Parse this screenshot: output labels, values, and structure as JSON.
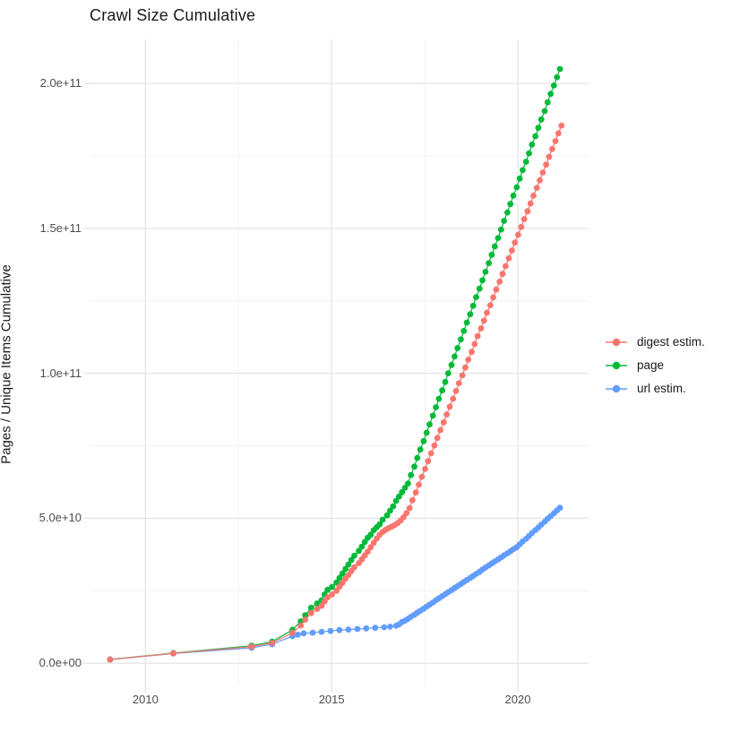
{
  "chart": {
    "title": "Crawl Size Cumulative",
    "ylabel": "Pages / Unique Items Cumulative",
    "xlabel": ""
  },
  "legend": {
    "position": "right",
    "items": [
      {
        "label": "digest estim.",
        "color": "#F8766D"
      },
      {
        "label": "page",
        "color": "#00BA38"
      },
      {
        "label": "url estim.",
        "color": "#619CFF"
      }
    ]
  },
  "chart_data": {
    "type": "line",
    "title": "Crawl Size Cumulative",
    "xlabel": "",
    "ylabel": "Pages / Unique Items Cumulative",
    "value_unit": "billions (1e9) of pages / unique items",
    "x_unit": "year",
    "grid": true,
    "legend_position": "right",
    "xlim": [
      2008.5,
      2021.9
    ],
    "ylim_billions": [
      -8,
      215.2
    ],
    "x_ticks": [
      {
        "label": "2010",
        "value": 2010
      },
      {
        "label": "2015",
        "value": 2015
      },
      {
        "label": "2020",
        "value": 2020
      }
    ],
    "y_ticks": [
      {
        "label": "0.0e+00",
        "value": 0
      },
      {
        "label": "5.0e+10",
        "value": 50
      },
      {
        "label": "1.0e+11",
        "value": 100
      },
      {
        "label": "1.5e+11",
        "value": 150
      },
      {
        "label": "2.0e+11",
        "value": 200
      }
    ],
    "x_minor": [
      2012.5,
      2017.5
    ],
    "y_minor_billions": [
      25,
      75,
      125,
      175
    ],
    "series": [
      {
        "name": "page",
        "color": "#00BA38",
        "points": [
          [
            2009.05,
            1.3
          ],
          [
            2010.75,
            3.5
          ],
          [
            2012.85,
            6.0
          ],
          [
            2013.4,
            7.4
          ],
          [
            2013.95,
            11.5
          ],
          [
            2014.17,
            14.4
          ],
          [
            2014.29,
            16.5
          ],
          [
            2014.45,
            19.1
          ],
          [
            2014.61,
            20.6
          ],
          [
            2014.73,
            21.7
          ],
          [
            2014.81,
            23.7
          ],
          [
            2014.89,
            25.3
          ],
          [
            2015.01,
            26.3
          ],
          [
            2015.13,
            27.8
          ],
          [
            2015.21,
            29.4
          ],
          [
            2015.29,
            30.9
          ],
          [
            2015.37,
            32.5
          ],
          [
            2015.45,
            34.0
          ],
          [
            2015.53,
            35.6
          ],
          [
            2015.61,
            37.1
          ],
          [
            2015.73,
            38.7
          ],
          [
            2015.81,
            40.2
          ],
          [
            2015.89,
            41.8
          ],
          [
            2015.97,
            43.3
          ],
          [
            2016.05,
            44.3
          ],
          [
            2016.13,
            45.9
          ],
          [
            2016.21,
            46.9
          ],
          [
            2016.29,
            47.9
          ],
          [
            2016.37,
            49.5
          ],
          [
            2016.49,
            51.0
          ],
          [
            2016.57,
            52.6
          ],
          [
            2016.65,
            54.1
          ],
          [
            2016.73,
            56.0
          ],
          [
            2016.81,
            57.5
          ],
          [
            2016.89,
            59.0
          ],
          [
            2016.97,
            60.5
          ],
          [
            2017.05,
            62.0
          ],
          [
            2017.13,
            64.9
          ],
          [
            2017.22,
            67.8
          ],
          [
            2017.3,
            70.8
          ],
          [
            2017.38,
            73.7
          ],
          [
            2017.47,
            76.6
          ],
          [
            2017.55,
            79.5
          ],
          [
            2017.63,
            82.4
          ],
          [
            2017.72,
            85.4
          ],
          [
            2017.8,
            88.3
          ],
          [
            2017.88,
            91.2
          ],
          [
            2017.97,
            94.1
          ],
          [
            2018.05,
            97.0
          ],
          [
            2018.13,
            100.0
          ],
          [
            2018.22,
            102.9
          ],
          [
            2018.3,
            105.8
          ],
          [
            2018.38,
            108.7
          ],
          [
            2018.47,
            111.7
          ],
          [
            2018.55,
            114.6
          ],
          [
            2018.63,
            117.5
          ],
          [
            2018.72,
            120.4
          ],
          [
            2018.8,
            123.3
          ],
          [
            2018.88,
            126.3
          ],
          [
            2018.97,
            129.2
          ],
          [
            2019.05,
            132.1
          ],
          [
            2019.13,
            135.0
          ],
          [
            2019.22,
            138.0
          ],
          [
            2019.3,
            140.9
          ],
          [
            2019.38,
            143.8
          ],
          [
            2019.47,
            146.7
          ],
          [
            2019.55,
            149.6
          ],
          [
            2019.63,
            152.6
          ],
          [
            2019.72,
            155.5
          ],
          [
            2019.8,
            158.4
          ],
          [
            2019.88,
            161.3
          ],
          [
            2019.97,
            164.2
          ],
          [
            2020.05,
            167.2
          ],
          [
            2020.13,
            170.1
          ],
          [
            2020.22,
            173.0
          ],
          [
            2020.3,
            175.9
          ],
          [
            2020.38,
            178.9
          ],
          [
            2020.47,
            181.8
          ],
          [
            2020.55,
            184.7
          ],
          [
            2020.63,
            187.6
          ],
          [
            2020.72,
            190.5
          ],
          [
            2020.8,
            193.5
          ],
          [
            2020.88,
            196.4
          ],
          [
            2020.97,
            199.3
          ],
          [
            2021.05,
            202.2
          ],
          [
            2021.13,
            205.0
          ]
        ]
      },
      {
        "name": "url estim.",
        "color": "#619CFF",
        "points": [
          [
            2009.05,
            1.2
          ],
          [
            2010.75,
            3.3
          ],
          [
            2012.85,
            5.3
          ],
          [
            2013.4,
            6.5
          ],
          [
            2013.95,
            9.3
          ],
          [
            2014.09,
            9.8
          ],
          [
            2014.25,
            10.3
          ],
          [
            2014.49,
            10.5
          ],
          [
            2014.73,
            10.8
          ],
          [
            2014.97,
            11.1
          ],
          [
            2015.21,
            11.4
          ],
          [
            2015.45,
            11.6
          ],
          [
            2015.69,
            11.8
          ],
          [
            2015.93,
            12.0
          ],
          [
            2016.17,
            12.2
          ],
          [
            2016.41,
            12.4
          ],
          [
            2016.57,
            12.6
          ],
          [
            2016.73,
            12.9
          ],
          [
            2016.81,
            13.4
          ],
          [
            2016.89,
            14.2
          ],
          [
            2016.97,
            14.7
          ],
          [
            2017.05,
            15.3
          ],
          [
            2017.13,
            16.0
          ],
          [
            2017.22,
            16.7
          ],
          [
            2017.3,
            17.4
          ],
          [
            2017.38,
            18.1
          ],
          [
            2017.47,
            18.8
          ],
          [
            2017.55,
            19.5
          ],
          [
            2017.63,
            20.2
          ],
          [
            2017.72,
            20.9
          ],
          [
            2017.8,
            21.7
          ],
          [
            2017.88,
            22.4
          ],
          [
            2017.97,
            23.1
          ],
          [
            2018.05,
            23.8
          ],
          [
            2018.13,
            24.5
          ],
          [
            2018.22,
            25.2
          ],
          [
            2018.3,
            25.9
          ],
          [
            2018.38,
            26.6
          ],
          [
            2018.47,
            27.3
          ],
          [
            2018.55,
            28.0
          ],
          [
            2018.63,
            28.7
          ],
          [
            2018.72,
            29.4
          ],
          [
            2018.8,
            30.1
          ],
          [
            2018.88,
            30.8
          ],
          [
            2018.97,
            31.5
          ],
          [
            2019.05,
            32.3
          ],
          [
            2019.13,
            33.0
          ],
          [
            2019.22,
            33.7
          ],
          [
            2019.3,
            34.4
          ],
          [
            2019.38,
            35.1
          ],
          [
            2019.47,
            35.8
          ],
          [
            2019.55,
            36.5
          ],
          [
            2019.63,
            37.2
          ],
          [
            2019.72,
            37.9
          ],
          [
            2019.8,
            38.6
          ],
          [
            2019.88,
            39.3
          ],
          [
            2019.97,
            40.0
          ],
          [
            2020.05,
            41.0
          ],
          [
            2020.13,
            42.0
          ],
          [
            2020.22,
            42.9
          ],
          [
            2020.3,
            43.9
          ],
          [
            2020.38,
            44.9
          ],
          [
            2020.47,
            45.9
          ],
          [
            2020.55,
            46.8
          ],
          [
            2020.63,
            47.8
          ],
          [
            2020.72,
            48.8
          ],
          [
            2020.8,
            49.8
          ],
          [
            2020.88,
            50.7
          ],
          [
            2020.97,
            51.7
          ],
          [
            2021.05,
            52.7
          ],
          [
            2021.13,
            53.6
          ]
        ]
      },
      {
        "name": "digest estim.",
        "color": "#F8766D",
        "points": [
          [
            2009.05,
            1.2
          ],
          [
            2010.75,
            3.4
          ],
          [
            2012.85,
            5.7
          ],
          [
            2013.4,
            7.0
          ],
          [
            2013.95,
            10.5
          ],
          [
            2014.17,
            13.0
          ],
          [
            2014.29,
            15.0
          ],
          [
            2014.45,
            17.3
          ],
          [
            2014.61,
            18.7
          ],
          [
            2014.73,
            19.8
          ],
          [
            2014.81,
            21.3
          ],
          [
            2014.89,
            22.7
          ],
          [
            2015.01,
            23.7
          ],
          [
            2015.13,
            25.0
          ],
          [
            2015.21,
            26.4
          ],
          [
            2015.29,
            27.7
          ],
          [
            2015.37,
            29.1
          ],
          [
            2015.45,
            30.4
          ],
          [
            2015.53,
            31.8
          ],
          [
            2015.61,
            33.1
          ],
          [
            2015.73,
            34.5
          ],
          [
            2015.81,
            35.8
          ],
          [
            2015.89,
            37.2
          ],
          [
            2015.97,
            38.5
          ],
          [
            2016.05,
            40.0
          ],
          [
            2016.13,
            41.5
          ],
          [
            2016.21,
            43.0
          ],
          [
            2016.29,
            44.3
          ],
          [
            2016.37,
            45.3
          ],
          [
            2016.45,
            46.0
          ],
          [
            2016.53,
            46.6
          ],
          [
            2016.61,
            47.1
          ],
          [
            2016.69,
            47.6
          ],
          [
            2016.77,
            48.3
          ],
          [
            2016.85,
            49.2
          ],
          [
            2016.93,
            50.3
          ],
          [
            2017.01,
            51.8
          ],
          [
            2017.09,
            53.5
          ],
          [
            2017.17,
            56.2
          ],
          [
            2017.26,
            58.9
          ],
          [
            2017.34,
            61.6
          ],
          [
            2017.42,
            64.3
          ],
          [
            2017.51,
            67.0
          ],
          [
            2017.59,
            69.7
          ],
          [
            2017.67,
            72.4
          ],
          [
            2017.76,
            75.1
          ],
          [
            2017.84,
            77.7
          ],
          [
            2017.92,
            80.4
          ],
          [
            2018.01,
            83.1
          ],
          [
            2018.09,
            85.8
          ],
          [
            2018.17,
            88.5
          ],
          [
            2018.26,
            91.2
          ],
          [
            2018.34,
            93.9
          ],
          [
            2018.42,
            96.6
          ],
          [
            2018.51,
            99.3
          ],
          [
            2018.59,
            102.0
          ],
          [
            2018.67,
            104.7
          ],
          [
            2018.76,
            107.4
          ],
          [
            2018.84,
            110.1
          ],
          [
            2018.92,
            112.8
          ],
          [
            2019.01,
            115.5
          ],
          [
            2019.09,
            118.2
          ],
          [
            2019.17,
            120.9
          ],
          [
            2019.26,
            123.5
          ],
          [
            2019.34,
            126.2
          ],
          [
            2019.42,
            128.9
          ],
          [
            2019.51,
            131.6
          ],
          [
            2019.59,
            134.3
          ],
          [
            2019.67,
            137.0
          ],
          [
            2019.76,
            139.7
          ],
          [
            2019.84,
            142.4
          ],
          [
            2019.92,
            145.1
          ],
          [
            2020.01,
            147.8
          ],
          [
            2020.09,
            150.5
          ],
          [
            2020.17,
            153.2
          ],
          [
            2020.26,
            155.9
          ],
          [
            2020.34,
            158.6
          ],
          [
            2020.42,
            161.3
          ],
          [
            2020.51,
            164.0
          ],
          [
            2020.59,
            166.6
          ],
          [
            2020.67,
            169.3
          ],
          [
            2020.76,
            172.0
          ],
          [
            2020.84,
            174.7
          ],
          [
            2020.92,
            177.4
          ],
          [
            2021.01,
            180.1
          ],
          [
            2021.09,
            182.8
          ],
          [
            2021.17,
            185.5
          ]
        ]
      }
    ],
    "styles": {
      "grid_major_color": "#e4e4e4",
      "grid_minor_color": "#f1f1f1",
      "tick_label_color": "#4d4d4d",
      "point_radius": 3.4,
      "line_width": 1.2
    }
  }
}
